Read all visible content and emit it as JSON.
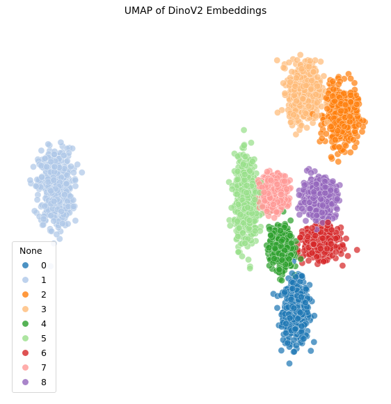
{
  "chart_data": {
    "type": "scatter",
    "title": "UMAP of DinoV2 Embeddings",
    "xlabel": "",
    "ylabel": "",
    "axes_visible": false,
    "legend": {
      "title": "None",
      "placement": "lower-left"
    },
    "series": [
      {
        "name": "0",
        "color": "#1f77b4",
        "center": [
          12.0,
          -5.2
        ],
        "spread": [
          1.05,
          1.85
        ],
        "count": 520
      },
      {
        "name": "1",
        "color": "#aec7e8",
        "center": [
          -17.0,
          6.0
        ],
        "spread": [
          1.35,
          2.35
        ],
        "count": 480
      },
      {
        "name": "2",
        "color": "#ff7f0e",
        "center": [
          17.5,
          12.5
        ],
        "spread": [
          1.25,
          1.75
        ],
        "count": 500
      },
      {
        "name": "3",
        "color": "#ffbb78",
        "center": [
          13.0,
          14.8
        ],
        "spread": [
          1.3,
          1.75
        ],
        "count": 500
      },
      {
        "name": "4",
        "color": "#2ca02c",
        "center": [
          10.2,
          0.5
        ],
        "spread": [
          0.95,
          1.25
        ],
        "count": 450
      },
      {
        "name": "5",
        "color": "#98df8a",
        "center": [
          6.0,
          4.8
        ],
        "spread": [
          0.95,
          2.6
        ],
        "count": 550
      },
      {
        "name": "6",
        "color": "#d62728",
        "center": [
          15.0,
          1.0
        ],
        "spread": [
          1.35,
          0.9
        ],
        "count": 460
      },
      {
        "name": "7",
        "color": "#ff9896",
        "center": [
          9.2,
          5.6
        ],
        "spread": [
          1.1,
          1.05
        ],
        "count": 420
      },
      {
        "name": "8",
        "color": "#9467bd",
        "center": [
          14.8,
          5.1
        ],
        "spread": [
          1.35,
          1.15
        ],
        "count": 500
      }
    ]
  }
}
